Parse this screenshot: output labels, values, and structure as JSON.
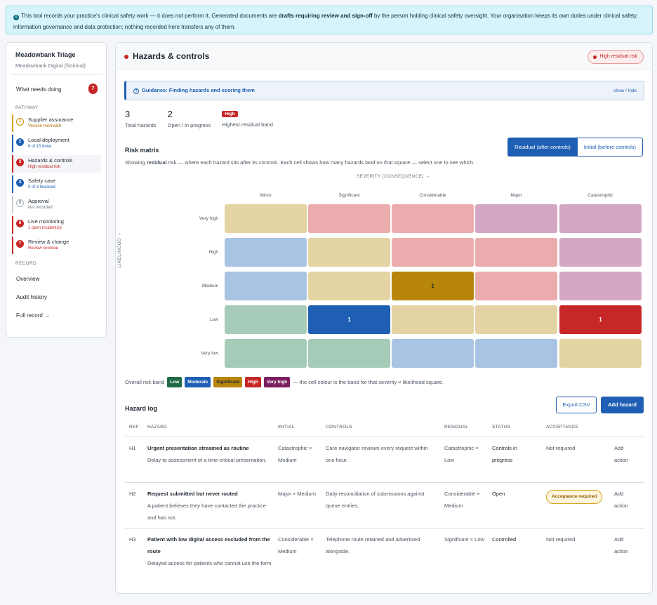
{
  "banner": {
    "text_pre": "This tool records your practice's clinical safety work — it does not perform it. Generated documents are ",
    "text_bold": "drafts requiring review and sign-off",
    "text_post": " by the person holding clinical safety oversight. Your organisation keeps its own duties under clinical safety, information governance and data protection; nothing recorded here transfers any of them."
  },
  "sidebar": {
    "org_name": "Meadowbank Triage",
    "org_sub": "Meadowbank Digital (fictional)",
    "needs_label": "What needs doing",
    "needs_count": "7",
    "pathway_label": "PATHWAY",
    "steps": [
      {
        "num": "1",
        "label": "Supplier assurance",
        "status": "Version mismatch",
        "tone": "warn"
      },
      {
        "num": "2",
        "label": "Local deployment",
        "status": "6 of 15 done",
        "tone": "blue"
      },
      {
        "num": "3",
        "label": "Hazards & controls",
        "status": "High residual risk",
        "tone": "red"
      },
      {
        "num": "4",
        "label": "Safety case",
        "status": "0 of 3 finalised",
        "tone": "blue"
      },
      {
        "num": "5",
        "label": "Approval",
        "status": "Not recorded",
        "tone": "grey"
      },
      {
        "num": "6",
        "label": "Live monitoring",
        "status": "1 open incident(s)",
        "tone": "red"
      },
      {
        "num": "7",
        "label": "Review & change",
        "status": "Review overdue",
        "tone": "red"
      }
    ],
    "record_label": "RECORD",
    "record_links": [
      "Overview",
      "Audit history",
      "Full record →"
    ]
  },
  "main": {
    "title": "Hazards & controls",
    "risk_pill": "High residual risk",
    "guidance_title": "Guidance: Finding hazards and scoring them",
    "guidance_toggle": "show / hide",
    "stats": {
      "total": "3",
      "total_label": "Total hazards",
      "open": "2",
      "open_label": "Open / in progress",
      "band": "High",
      "band_label": "Highest residual band"
    },
    "matrix": {
      "title": "Risk matrix",
      "desc_pre": "Showing ",
      "desc_bold": "residual",
      "desc_mid": " risk — where each hazard sits ",
      "desc_italic": "after",
      "desc_post": " its controls. Each cell shows how many hazards land on that square — select one to see which.",
      "toggle_residual": "Residual (after controls)",
      "toggle_initial": "Initial (before controls)",
      "x_axis": "SEVERITY (CONSEQUENCE) →",
      "y_axis": "LIKELIHOOD →",
      "severity": [
        "Minor",
        "Significant",
        "Considerable",
        "Major",
        "Catastrophic"
      ],
      "likelihood": [
        "Very high",
        "High",
        "Medium",
        "Low",
        "Very low"
      ],
      "band_colors": {
        "low": "#a6cbb8",
        "moderate": "#a9c3e2",
        "significant": "#e5d4a3",
        "high": "#ebacae",
        "veryhigh": "#d4a7c4",
        "low_active": "#1e6b45",
        "moderate_active": "#1e5fb3",
        "significant_active": "#b8860b",
        "high_active": "#c62828",
        "veryhigh_active": "#7b1f5e"
      },
      "grid": [
        [
          "significant",
          "high",
          "high",
          "veryhigh",
          "veryhigh"
        ],
        [
          "moderate",
          "significant",
          "high",
          "high",
          "veryhigh"
        ],
        [
          "moderate",
          "significant",
          "significant",
          "high",
          "veryhigh"
        ],
        [
          "low",
          "moderate",
          "significant",
          "significant",
          "high"
        ],
        [
          "low",
          "low",
          "moderate",
          "moderate",
          "significant"
        ]
      ],
      "counts": [
        [
          "",
          "",
          "",
          "",
          ""
        ],
        [
          "",
          "",
          "",
          "",
          ""
        ],
        [
          "",
          "",
          "1",
          "",
          ""
        ],
        [
          "",
          "1",
          "",
          "",
          "1"
        ],
        [
          "",
          "",
          "",
          "",
          ""
        ]
      ],
      "legend_label": "Overall risk band",
      "legend": [
        "Low",
        "Moderate",
        "Significant",
        "High",
        "Very high"
      ],
      "legend_note": "— the cell colour is the band for that severity × likelihood square."
    },
    "log": {
      "title": "Hazard log",
      "export_label": "Export CSV",
      "add_label": "Add hazard",
      "columns": [
        "REF",
        "HAZARD",
        "INITIAL",
        "CONTROLS",
        "RESIDUAL",
        "STATUS",
        "ACCEPTANCE"
      ],
      "rows": [
        {
          "ref": "H1",
          "title": "Urgent presentation streamed as routine",
          "desc": "Delay to assessment of a time-critical presentation.",
          "initial": "Catastrophic × Medium",
          "controls": "Care navigator reviews every request within one hour.",
          "residual": "Catastrophic × Low",
          "status": "Controls in progress",
          "acceptance": "Not required",
          "action": "Add action"
        },
        {
          "ref": "H2",
          "title": "Request submitted but never routed",
          "desc": "A patient believes they have contacted the practice and has not.",
          "initial": "Major × Medium",
          "controls": "Daily reconciliation of submissions against queue entries.",
          "residual": "Considerable × Medium",
          "status": "Open",
          "acceptance": "Acceptance required",
          "action": "Add action"
        },
        {
          "ref": "H3",
          "title": "Patient with low digital access excluded from the route",
          "desc": "Delayed access for patients who cannot use the form.",
          "initial": "Considerable × Medium",
          "controls": "Telephone route retained and advertised alongside.",
          "residual": "Significant × Low",
          "status": "Controlled",
          "acceptance": "Not required",
          "action": "Add action"
        }
      ]
    }
  }
}
